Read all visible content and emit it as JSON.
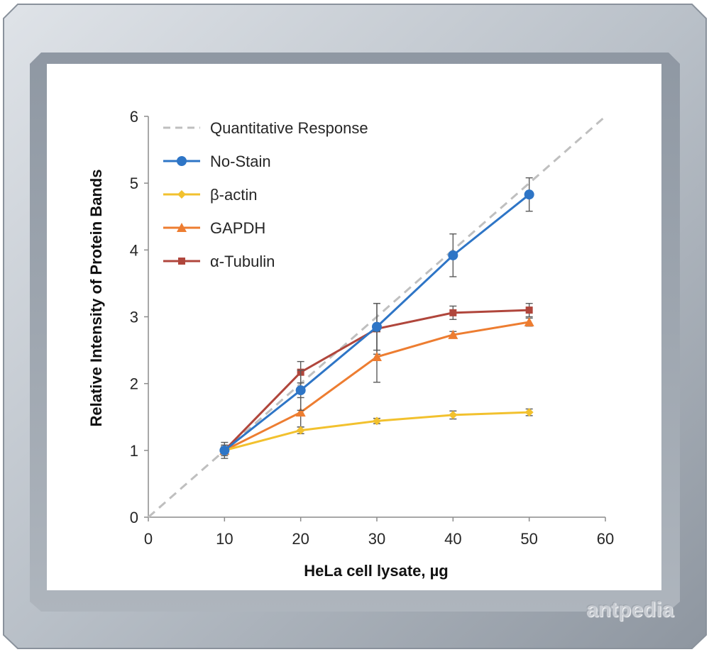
{
  "watermark": "antpedia",
  "colors": {
    "frame_outer": "#c9ced6",
    "frame_inner": "#9ba3ad",
    "panel": "#ffffff",
    "quantitative": "#bfbfbf",
    "no_stain": "#2e75c6",
    "beta_actin": "#f2c12e",
    "gapdh": "#ed7d31",
    "alpha_tubulin": "#b0463c"
  },
  "chart_data": {
    "type": "line",
    "xlabel": "HeLa cell lysate, µg",
    "ylabel": "Relative Intensity of Protein Bands",
    "xlim": [
      0,
      60
    ],
    "ylim": [
      0,
      6
    ],
    "xticks": [
      "0",
      "10",
      "20",
      "30",
      "40",
      "50",
      "60"
    ],
    "yticks": [
      "0",
      "1",
      "2",
      "3",
      "4",
      "5",
      "6"
    ],
    "legend_position": "top-left",
    "grid": false,
    "series": [
      {
        "name": "Quantitative Response",
        "style": "dashed",
        "color": "#bfbfbf",
        "marker": "none",
        "x": [
          0,
          60
        ],
        "y": [
          0,
          6
        ],
        "err": [
          0,
          0
        ]
      },
      {
        "name": "No-Stain",
        "style": "solid",
        "color": "#2e75c6",
        "marker": "circle",
        "x": [
          10,
          20,
          30,
          40,
          50
        ],
        "y": [
          1.0,
          1.9,
          2.85,
          3.92,
          4.83
        ],
        "err": [
          0.12,
          0.3,
          0.35,
          0.32,
          0.25
        ]
      },
      {
        "name": "β-actin",
        "style": "solid",
        "color": "#f2c12e",
        "marker": "diamond",
        "x": [
          10,
          20,
          30,
          40,
          50
        ],
        "y": [
          1.0,
          1.3,
          1.44,
          1.53,
          1.57
        ],
        "err": [
          0.05,
          0.05,
          0.04,
          0.06,
          0.05
        ]
      },
      {
        "name": "GAPDH",
        "style": "solid",
        "color": "#ed7d31",
        "marker": "triangle",
        "x": [
          10,
          20,
          30,
          40,
          50
        ],
        "y": [
          1.0,
          1.57,
          2.4,
          2.73,
          2.92
        ],
        "err": [
          0.08,
          0.22,
          0.38,
          0.05,
          0.06
        ]
      },
      {
        "name": "α-Tubulin",
        "style": "solid",
        "color": "#b0463c",
        "marker": "square",
        "x": [
          10,
          20,
          30,
          40,
          50
        ],
        "y": [
          1.0,
          2.17,
          2.82,
          3.06,
          3.1
        ],
        "err": [
          0.06,
          0.16,
          0.38,
          0.1,
          0.1
        ]
      }
    ]
  }
}
